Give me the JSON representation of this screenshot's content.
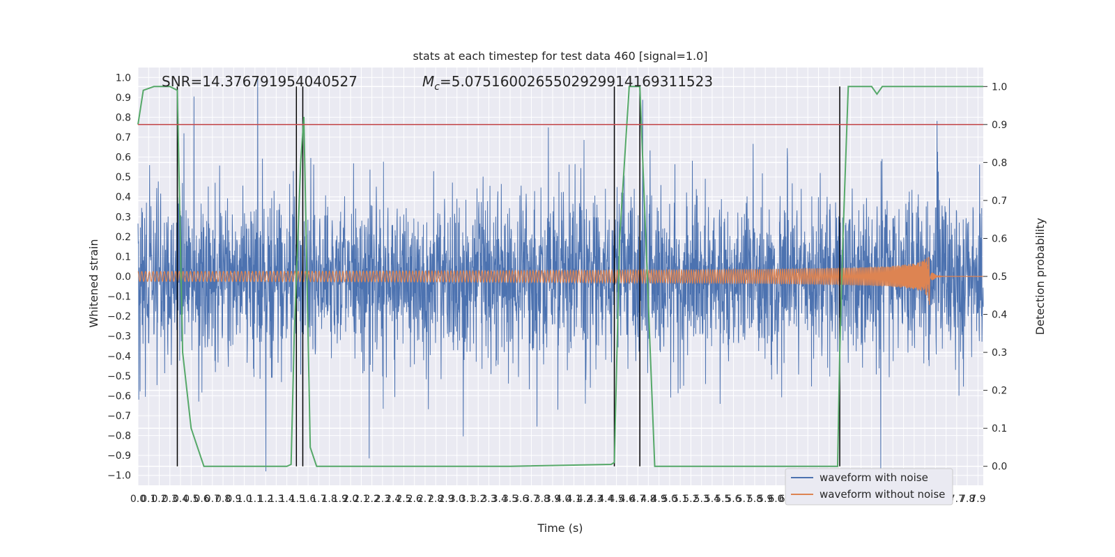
{
  "chart_data": {
    "type": "line",
    "title": "stats at each timestep for test data 460 [signal=1.0]",
    "xlabel": "Time (s)",
    "ylabel_left": "Whitened strain",
    "ylabel_right": "Detection probability",
    "annotations": {
      "snr": "SNR=14.376791954040527",
      "mc": "=5.0751600265502929914169311523",
      "mc_symbol": "M",
      "mc_subscript": "c"
    },
    "xlim": [
      0.0,
      7.95
    ],
    "ylim_left": [
      -1.05,
      1.05
    ],
    "ylim_right": [
      -0.05,
      1.05
    ],
    "x_ticks": [
      "0.0",
      "0.1",
      "0.2",
      "0.3",
      "0.4",
      "0.5",
      "0.6",
      "0.7",
      "0.8",
      "0.9",
      "1.0",
      "1.1",
      "1.2",
      "1.3",
      "1.4",
      "1.5",
      "1.6",
      "1.7",
      "1.8",
      "1.9",
      "2.0",
      "2.1",
      "2.2",
      "2.3",
      "2.4",
      "2.5",
      "2.6",
      "2.7",
      "2.8",
      "2.9",
      "3.0",
      "3.1",
      "3.2",
      "3.3",
      "3.4",
      "3.5",
      "3.6",
      "3.7",
      "3.8",
      "3.9",
      "4.0",
      "4.1",
      "4.2",
      "4.3",
      "4.4",
      "4.5",
      "4.6",
      "4.7",
      "4.8",
      "4.9",
      "5.0",
      "5.1",
      "5.2",
      "5.3",
      "5.4",
      "5.5",
      "5.6",
      "5.7",
      "5.8",
      "5.9",
      "6.0",
      "6.1",
      "6.2",
      "6.3",
      "6.4",
      "6.5",
      "6.6",
      "6.7",
      "6.8",
      "6.9",
      "7.0",
      "7.1",
      "7.2",
      "7.3",
      "7.4",
      "7.5",
      "7.6",
      "7.7",
      "7.8",
      "7.9"
    ],
    "y_ticks_left": [
      "1.0",
      "0.9",
      "0.8",
      "0.7",
      "0.6",
      "0.5",
      "0.4",
      "0.3",
      "0.2",
      "0.1",
      "0.0",
      "−0.1",
      "−0.2",
      "−0.3",
      "−0.4",
      "−0.5",
      "−0.6",
      "−0.7",
      "−0.8",
      "−0.9",
      "−1.0"
    ],
    "y_ticks_right": [
      "1.0",
      "0.9",
      "0.8",
      "0.7",
      "0.6",
      "0.5",
      "0.4",
      "0.3",
      "0.2",
      "0.1",
      "0.0"
    ],
    "threshold_probability": 0.9,
    "detection_vlines_s": [
      0.37,
      1.49,
      1.55,
      4.48,
      4.72,
      6.6
    ],
    "series": [
      {
        "name": "waveform with noise",
        "color": "#4c72b0",
        "noise_amplitude_typ": 0.45,
        "peak_abs": 1.0,
        "duration_s": 7.95
      },
      {
        "name": "waveform without noise",
        "color": "#dd8452",
        "amplitude_start": 0.025,
        "amplitude_peak": 0.39,
        "merger_time_s": 7.45,
        "freq_start_hz": 28
      },
      {
        "name": "detection probability",
        "color": "#55a868",
        "x": [
          0.0,
          0.05,
          0.15,
          0.3,
          0.37,
          0.42,
          0.5,
          0.62,
          1.0,
          1.4,
          1.44,
          1.47,
          1.53,
          1.56,
          1.62,
          1.68,
          2.5,
          3.5,
          4.45,
          4.48,
          4.53,
          4.62,
          4.68,
          4.72,
          4.86,
          5.3,
          6.0,
          6.58,
          6.6,
          6.63,
          6.68,
          6.75,
          6.9,
          6.95,
          7.0,
          7.05,
          7.5,
          7.95
        ],
        "y": [
          0.9,
          0.99,
          1.0,
          1.0,
          0.99,
          0.3,
          0.1,
          0.0,
          0.0,
          0.0,
          0.005,
          0.35,
          0.8,
          0.92,
          0.05,
          0.0,
          0.0,
          0.0,
          0.005,
          0.01,
          0.6,
          1.0,
          1.0,
          1.0,
          0.0,
          0.0,
          0.0,
          0.0,
          0.3,
          0.6,
          1.0,
          1.0,
          1.0,
          0.98,
          1.0,
          1.0,
          1.0,
          1.0
        ]
      },
      {
        "name": "threshold",
        "color": "#c44e52",
        "value": 0.9
      }
    ],
    "legend": {
      "placement": "lower-right",
      "entries": [
        "waveform with noise",
        "waveform without noise"
      ]
    }
  }
}
